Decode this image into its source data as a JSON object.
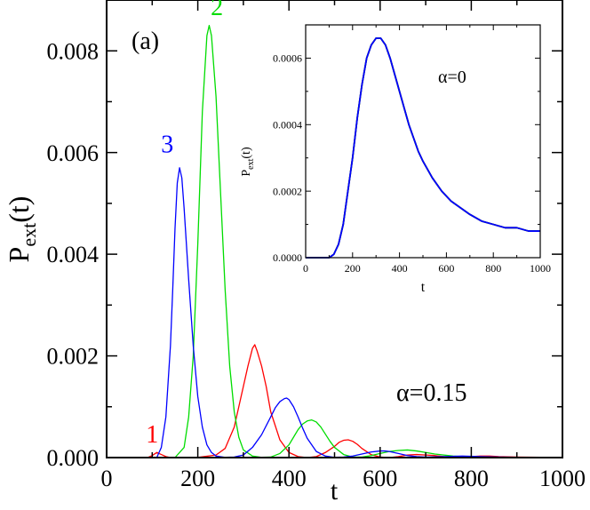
{
  "chart_data": [
    {
      "type": "line",
      "panel_label": "(a)",
      "xlabel": "t",
      "ylabel_main": "P",
      "ylabel_sub": "ext",
      "ylabel_suffix": "(t)",
      "xlim": [
        0,
        1000
      ],
      "ylim": [
        0,
        0.009
      ],
      "xticks": [
        0,
        200,
        400,
        600,
        800,
        1000
      ],
      "xtick_labels": [
        "0",
        "200",
        "400",
        "600",
        "800",
        "1000"
      ],
      "yticks": [
        0,
        0.002,
        0.004,
        0.006,
        0.008
      ],
      "ytick_labels": [
        "0.000",
        "0.002",
        "0.004",
        "0.006",
        "0.008"
      ],
      "annotation": "α=0.15",
      "series": [
        {
          "name": "1",
          "color": "#ff0000",
          "label_at": [
            100,
            0.0003
          ],
          "x": [
            0,
            90,
            100,
            110,
            120,
            130,
            140,
            150,
            200,
            240,
            260,
            280,
            300,
            310,
            320,
            325,
            330,
            340,
            350,
            360,
            380,
            400,
            420,
            440,
            460,
            480,
            500,
            510,
            520,
            530,
            540,
            550,
            560,
            580,
            600,
            620,
            640,
            660,
            680,
            700,
            720,
            740,
            760,
            780,
            800,
            820,
            840,
            860,
            900,
            950,
            1000
          ],
          "y": [
            0,
            0,
            4e-05,
            0.0001,
            6e-05,
            2e-05,
            0,
            0,
            5e-06,
            5e-05,
            0.00018,
            0.0006,
            0.0014,
            0.0018,
            0.00215,
            0.00222,
            0.0021,
            0.0018,
            0.0014,
            0.0009,
            0.00035,
            0.0001,
            2e-05,
            0,
            2e-05,
            0.0001,
            0.00022,
            0.0003,
            0.00034,
            0.00035,
            0.00032,
            0.00026,
            0.00018,
            6e-05,
            1e-05,
            0,
            2e-05,
            5e-05,
            6e-05,
            5e-05,
            4e-05,
            2e-05,
            1e-05,
            1e-05,
            2e-05,
            3e-05,
            3e-05,
            2e-05,
            1e-05,
            5e-06,
            0
          ]
        },
        {
          "name": "2",
          "color": "#00dd00",
          "label_at": [
            242,
            0.0087
          ],
          "x": [
            0,
            150,
            170,
            180,
            190,
            200,
            210,
            220,
            225,
            230,
            240,
            250,
            260,
            270,
            280,
            290,
            300,
            320,
            340,
            360,
            380,
            400,
            410,
            420,
            430,
            440,
            450,
            460,
            470,
            480,
            490,
            500,
            520,
            540,
            560,
            580,
            600,
            620,
            640,
            660,
            680,
            700,
            720,
            760,
            800,
            860,
            900,
            1000
          ],
          "y": [
            0,
            0,
            0.0002,
            0.0008,
            0.002,
            0.0042,
            0.0068,
            0.0083,
            0.0085,
            0.0083,
            0.0071,
            0.0052,
            0.0033,
            0.0018,
            0.0009,
            0.0004,
            0.00015,
            3e-05,
            5e-06,
            1e-05,
            8e-05,
            0.00025,
            0.0004,
            0.00055,
            0.00066,
            0.00072,
            0.00074,
            0.0007,
            0.0006,
            0.00046,
            0.00032,
            0.0002,
            6e-05,
            1e-05,
            1e-05,
            4e-05,
            8e-05,
            0.00012,
            0.00014,
            0.00015,
            0.00013,
            0.0001,
            7e-05,
            3e-05,
            1e-05,
            5e-06,
            0,
            0
          ]
        },
        {
          "name": "3",
          "color": "#0000ff",
          "label_at": [
            133,
            0.006
          ],
          "x": [
            0,
            110,
            120,
            130,
            140,
            145,
            150,
            155,
            160,
            165,
            170,
            180,
            190,
            200,
            210,
            220,
            230,
            240,
            260,
            280,
            300,
            320,
            340,
            360,
            370,
            380,
            390,
            395,
            400,
            410,
            420,
            430,
            440,
            460,
            480,
            500,
            520,
            540,
            560,
            580,
            600,
            610,
            620,
            640,
            660,
            680,
            700,
            740,
            780,
            820,
            860,
            900,
            1000
          ],
          "y": [
            0,
            0,
            0.0002,
            0.0008,
            0.0022,
            0.0033,
            0.0045,
            0.0054,
            0.0057,
            0.0055,
            0.0049,
            0.0035,
            0.0022,
            0.0012,
            0.0006,
            0.00025,
            0.0001,
            3e-05,
            5e-06,
            1e-05,
            5e-05,
            0.0002,
            0.00045,
            0.0008,
            0.00098,
            0.0011,
            0.00116,
            0.00117,
            0.00114,
            0.001,
            0.0008,
            0.00058,
            0.00038,
            0.00012,
            3e-05,
            5e-06,
            1e-05,
            3e-05,
            7e-05,
            0.00011,
            0.00013,
            0.00013,
            0.00012,
            8e-05,
            4e-05,
            2e-05,
            1e-05,
            2e-05,
            3e-05,
            2e-05,
            1e-05,
            5e-06,
            0
          ]
        }
      ]
    },
    {
      "type": "line",
      "inset": true,
      "xlabel": "t",
      "ylabel_main": "P",
      "ylabel_sub": "ext",
      "ylabel_suffix": "(t)",
      "xlim": [
        0,
        1000
      ],
      "ylim": [
        0,
        0.0007
      ],
      "xticks": [
        0,
        200,
        400,
        600,
        800,
        1000
      ],
      "xtick_labels": [
        "0",
        "200",
        "400",
        "600",
        "800",
        "1000"
      ],
      "yticks": [
        0,
        0.0002,
        0.0004,
        0.0006
      ],
      "ytick_labels": [
        "0.0000",
        "0.0002",
        "0.0004",
        "0.0006"
      ],
      "annotation": "α=0",
      "series": [
        {
          "color": "#ff0000",
          "x": [
            0,
            100,
            120,
            140,
            160,
            180,
            200,
            220,
            240,
            260,
            280,
            300,
            320,
            340,
            360,
            380,
            400,
            420,
            440,
            460,
            480,
            500,
            540,
            580,
            620,
            660,
            700,
            750,
            800,
            850,
            900,
            950,
            1000
          ],
          "y": [
            0,
            0,
            1e-05,
            4e-05,
            0.0001,
            0.0002,
            0.0003,
            0.00042,
            0.00052,
            0.0006,
            0.00064,
            0.00066,
            0.00066,
            0.00064,
            0.0006,
            0.00055,
            0.0005,
            0.00045,
            0.0004,
            0.00036,
            0.00032,
            0.00029,
            0.00024,
            0.0002,
            0.00017,
            0.00015,
            0.00013,
            0.00011,
            0.0001,
            9e-05,
            9e-05,
            8e-05,
            8e-05
          ]
        },
        {
          "color": "#00cc00",
          "x": [
            0,
            100,
            120,
            140,
            160,
            180,
            200,
            220,
            240,
            260,
            280,
            300,
            320,
            340,
            360,
            380,
            400,
            420,
            440,
            460,
            480,
            500,
            540,
            580,
            620,
            660,
            700,
            750,
            800,
            850,
            900,
            950,
            1000
          ],
          "y": [
            0,
            0,
            1e-05,
            4e-05,
            0.0001,
            0.0002,
            0.0003,
            0.00042,
            0.00052,
            0.0006,
            0.00064,
            0.00066,
            0.00066,
            0.00064,
            0.0006,
            0.00055,
            0.0005,
            0.00045,
            0.0004,
            0.00036,
            0.00032,
            0.00029,
            0.00024,
            0.0002,
            0.00017,
            0.00015,
            0.00013,
            0.00011,
            0.0001,
            9e-05,
            9e-05,
            8e-05,
            8e-05
          ]
        },
        {
          "color": "#0000ff",
          "x": [
            0,
            100,
            120,
            140,
            160,
            180,
            200,
            220,
            240,
            260,
            280,
            300,
            320,
            340,
            360,
            380,
            400,
            420,
            440,
            460,
            480,
            500,
            540,
            580,
            620,
            660,
            700,
            750,
            800,
            850,
            900,
            950,
            1000
          ],
          "y": [
            0,
            0,
            1e-05,
            4e-05,
            0.0001,
            0.0002,
            0.0003,
            0.00042,
            0.00052,
            0.0006,
            0.00064,
            0.00066,
            0.00066,
            0.00064,
            0.0006,
            0.00055,
            0.0005,
            0.00045,
            0.0004,
            0.00036,
            0.00032,
            0.00029,
            0.00024,
            0.0002,
            0.00017,
            0.00015,
            0.00013,
            0.00011,
            0.0001,
            9e-05,
            9e-05,
            8e-05,
            8e-05
          ]
        }
      ]
    }
  ]
}
